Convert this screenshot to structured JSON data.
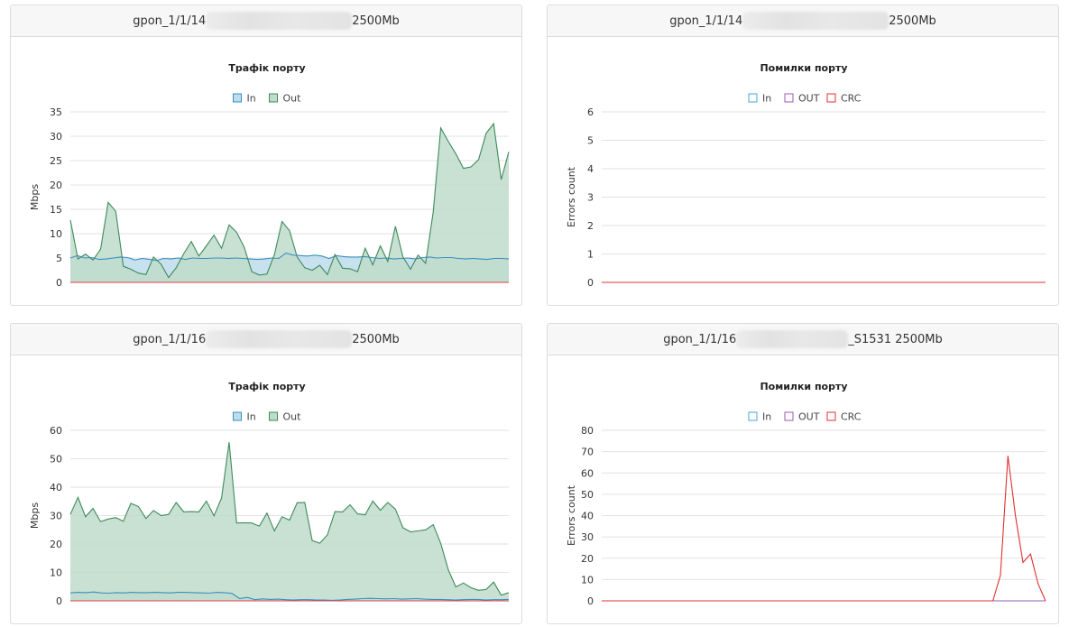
{
  "panels": [
    {
      "header": {
        "prefix": "gpon_1/1/14",
        "suffix": "2500Mb"
      },
      "chart_data": {
        "type": "area",
        "title": "Трафік порту",
        "ylabel": "Mbps",
        "xlabel": "",
        "ylim": [
          0,
          35
        ],
        "yticks": [
          0,
          5,
          10,
          15,
          20,
          25,
          30,
          35
        ],
        "legend_position": "top",
        "grid": true,
        "series": [
          {
            "name": "In",
            "color": "#3a8fc0",
            "fill": "#bddcec",
            "values": [
              5.0,
              5.5,
              5.0,
              5.1,
              4.7,
              4.8,
              5.0,
              5.2,
              5.1,
              4.6,
              4.9,
              4.7,
              4.5,
              4.9,
              4.8,
              5.0,
              4.7,
              5.0,
              4.9,
              4.9,
              5.0,
              5.0,
              4.9,
              5.0,
              4.9,
              4.8,
              4.7,
              4.8,
              5.0,
              4.9,
              6.0,
              5.6,
              5.5,
              5.4,
              5.6,
              5.4,
              4.9,
              5.5,
              5.3,
              5.2,
              5.2,
              5.3,
              5.1,
              4.9,
              5.0,
              4.8,
              4.9,
              5.0,
              4.8,
              5.1,
              5.2,
              5.0,
              5.1,
              5.1,
              4.9,
              4.8,
              4.9,
              4.8,
              4.7,
              4.9,
              4.9,
              4.8
            ]
          },
          {
            "name": "Out",
            "color": "#3e8a5c",
            "fill": "#bedcca",
            "values": [
              12.8,
              4.8,
              5.8,
              4.6,
              6.8,
              16.4,
              14.6,
              3.3,
              2.7,
              1.9,
              1.6,
              5.2,
              3.7,
              1.0,
              3.0,
              5.9,
              8.4,
              5.4,
              7.5,
              9.7,
              7.0,
              11.8,
              10.3,
              7.2,
              2.2,
              1.5,
              1.7,
              5.7,
              12.5,
              10.6,
              5.2,
              3.0,
              2.5,
              3.5,
              1.6,
              5.7,
              2.9,
              2.8,
              2.2,
              7.0,
              3.6,
              7.5,
              4.3,
              11.5,
              5.2,
              2.7,
              5.6,
              3.9,
              14.4,
              31.7,
              28.9,
              26.4,
              23.4,
              23.7,
              25.2,
              30.6,
              32.6,
              21.1,
              26.8
            ]
          },
          {
            "name": "",
            "color": "#e04040",
            "fill": "none",
            "values": [
              0,
              0
            ]
          }
        ]
      }
    },
    {
      "header": {
        "prefix": "gpon_1/1/14",
        "suffix": "2500Mb"
      },
      "chart_data": {
        "type": "line",
        "title": "Помилки порту",
        "ylabel": "Errors count",
        "xlabel": "",
        "ylim": [
          0,
          6
        ],
        "yticks": [
          0,
          1,
          2,
          3,
          4,
          5,
          6
        ],
        "legend_position": "top",
        "grid": true,
        "series": [
          {
            "name": "In",
            "color": "#4aa3d6",
            "values": [
              0,
              0,
              0,
              0,
              0,
              0,
              0,
              0,
              0,
              0
            ]
          },
          {
            "name": "OUT",
            "color": "#9b59b6",
            "values": [
              0,
              0,
              0,
              0,
              0,
              0,
              0,
              0,
              0,
              0
            ]
          },
          {
            "name": "CRC",
            "color": "#e03030",
            "values": [
              0,
              0,
              0,
              0,
              0,
              0,
              0,
              0,
              0,
              0
            ]
          }
        ]
      }
    },
    {
      "header": {
        "prefix": "gpon_1/1/16",
        "suffix": "2500Mb"
      },
      "chart_data": {
        "type": "area",
        "title": "Трафік порту",
        "ylabel": "Mbps",
        "xlabel": "",
        "ylim": [
          0,
          60
        ],
        "yticks": [
          0,
          10,
          20,
          30,
          40,
          50,
          60
        ],
        "legend_position": "top",
        "grid": true,
        "series": [
          {
            "name": "In",
            "color": "#3a8fc0",
            "fill": "#bddcec",
            "values": [
              2.8,
              3.0,
              2.9,
              3.1,
              2.8,
              2.7,
              2.9,
              2.8,
              3.0,
              2.9,
              2.9,
              3.0,
              2.9,
              2.8,
              3.0,
              3.0,
              2.9,
              2.8,
              2.7,
              3.0,
              2.9,
              2.6,
              0.8,
              1.2,
              0.4,
              0.7,
              0.5,
              0.6,
              0.4,
              0.3,
              0.4,
              0.4,
              0.3,
              0.3,
              0.2,
              0.3,
              0.5,
              0.6,
              0.8,
              0.9,
              0.8,
              0.7,
              0.8,
              0.6,
              0.7,
              0.8,
              0.6,
              0.5,
              0.5,
              0.4,
              0.3,
              0.4,
              0.5,
              0.5,
              0.3,
              0.4,
              0.4,
              0.5
            ]
          },
          {
            "name": "Out",
            "color": "#3e8a5c",
            "fill": "#bedcca",
            "values": [
              30.4,
              36.4,
              29.6,
              32.5,
              27.9,
              28.8,
              29.3,
              28.0,
              34.3,
              33.2,
              29.0,
              31.8,
              30.0,
              30.4,
              34.6,
              31.3,
              31.4,
              31.3,
              35.1,
              29.9,
              36.2,
              55.8,
              27.4,
              27.5,
              27.4,
              26.3,
              30.9,
              24.6,
              29.6,
              28.4,
              34.5,
              34.6,
              21.2,
              20.3,
              23.2,
              31.4,
              31.3,
              33.8,
              30.6,
              30.3,
              35.1,
              31.9,
              34.6,
              32.3,
              25.7,
              24.3,
              24.6,
              25.0,
              26.8,
              20.2,
              10.9,
              4.9,
              6.3,
              4.6,
              3.7,
              4.0,
              6.6,
              2.0,
              2.9
            ]
          },
          {
            "name": "",
            "color": "#e04040",
            "fill": "none",
            "values": [
              0,
              0
            ]
          }
        ]
      }
    },
    {
      "header": {
        "prefix": "gpon_1/1/16",
        "suffix": "_S1531 2500Mb"
      },
      "chart_data": {
        "type": "line",
        "title": "Помилки порту",
        "ylabel": "Errors count",
        "xlabel": "",
        "ylim": [
          0,
          80
        ],
        "yticks": [
          0,
          10,
          20,
          30,
          40,
          50,
          60,
          70,
          80
        ],
        "legend_position": "top",
        "grid": true,
        "series": [
          {
            "name": "In",
            "color": "#4aa3d6",
            "values": [
              0,
              0,
              0,
              0,
              0,
              0,
              0,
              0,
              0,
              0,
              0,
              0,
              0,
              0,
              0,
              0,
              0,
              0,
              0,
              0,
              0,
              0,
              0,
              0,
              0,
              0,
              0,
              0,
              0,
              0,
              0,
              0,
              0,
              0,
              0,
              0,
              0,
              0,
              0,
              0,
              0,
              0,
              0,
              0,
              0,
              0,
              0,
              0,
              0,
              0,
              0,
              0,
              0,
              0,
              0,
              0,
              0,
              0,
              0,
              0
            ]
          },
          {
            "name": "OUT",
            "color": "#9b59b6",
            "values": [
              0,
              0,
              0,
              0,
              0,
              0,
              0,
              0,
              0,
              0,
              0,
              0,
              0,
              0,
              0,
              0,
              0,
              0,
              0,
              0,
              0,
              0,
              0,
              0,
              0,
              0,
              0,
              0,
              0,
              0,
              0,
              0,
              0,
              0,
              0,
              0,
              0,
              0,
              0,
              0,
              0,
              0,
              0,
              0,
              0,
              0,
              0,
              0,
              0,
              0,
              0,
              0,
              0,
              0,
              0,
              0,
              0,
              0,
              0,
              0
            ]
          },
          {
            "name": "CRC",
            "color": "#e03030",
            "values": [
              0,
              0,
              0,
              0,
              0,
              0,
              0,
              0,
              0,
              0,
              0,
              0,
              0,
              0,
              0,
              0,
              0,
              0,
              0,
              0,
              0,
              0,
              0,
              0,
              0,
              0,
              0,
              0,
              0,
              0,
              0,
              0,
              0,
              0,
              0,
              0,
              0,
              0,
              0,
              0,
              0,
              0,
              0,
              0,
              0,
              0,
              0,
              0,
              0,
              0,
              0,
              0,
              0,
              12,
              68,
              40,
              18,
              22,
              8,
              0
            ]
          }
        ]
      }
    }
  ]
}
